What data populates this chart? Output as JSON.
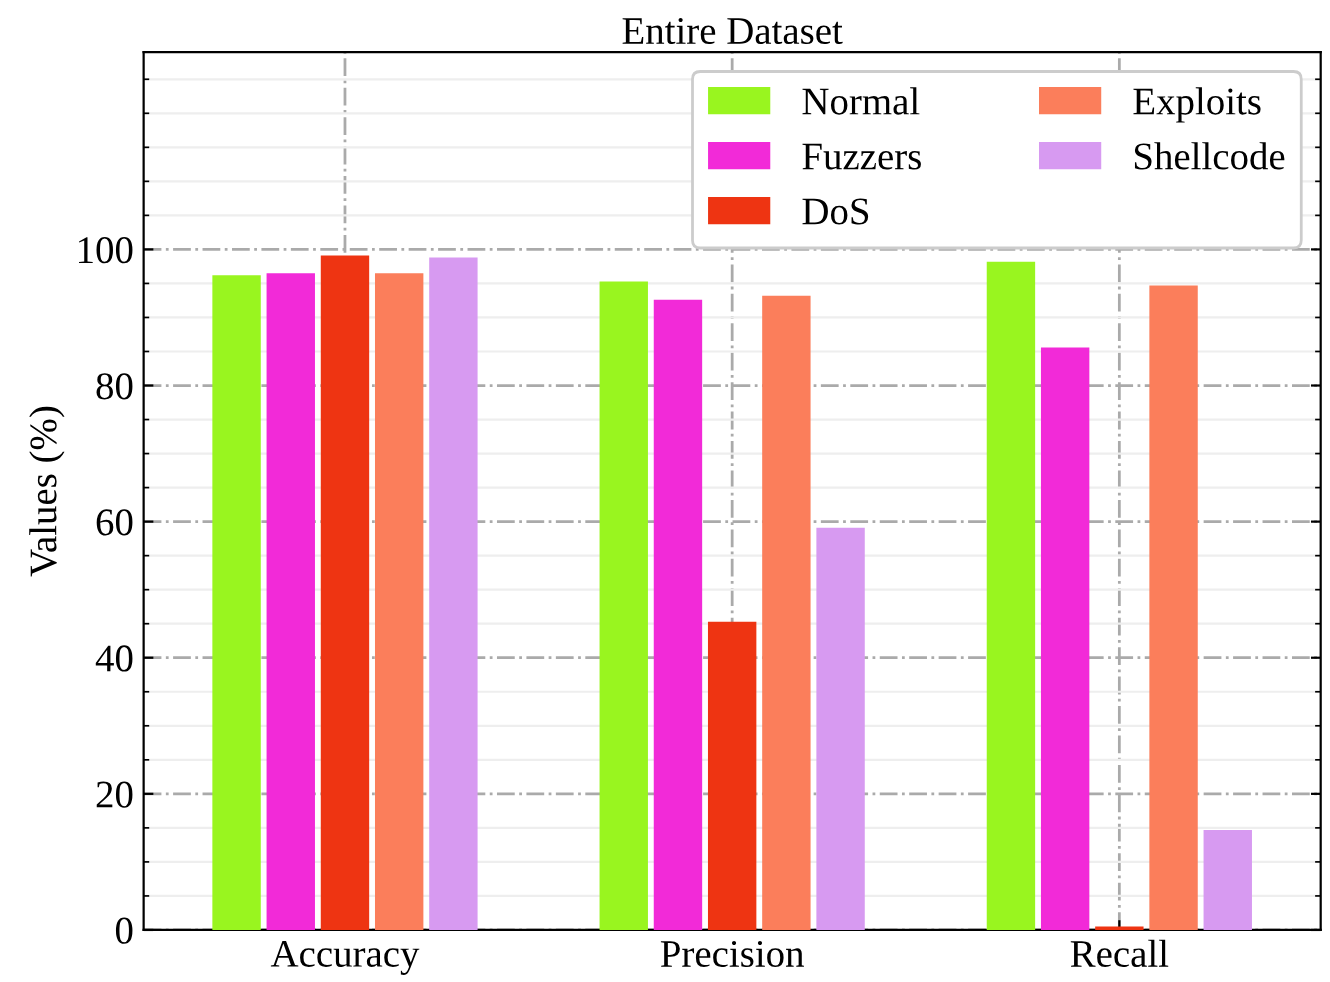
{
  "chart_data": {
    "type": "bar",
    "title": "Entire Dataset",
    "ylabel": "Values (%)",
    "categories": [
      "Accuracy",
      "Precision",
      "Recall"
    ],
    "series": [
      {
        "name": "Normal",
        "color": "#99f51f",
        "values": [
          96.2,
          95.3,
          98.2
        ]
      },
      {
        "name": "Fuzzers",
        "color": "#f22ad8",
        "values": [
          96.5,
          92.6,
          85.6
        ]
      },
      {
        "name": "DoS",
        "color": "#ee3412",
        "values": [
          99.1,
          45.3,
          0.5
        ]
      },
      {
        "name": "Exploits",
        "color": "#fb7e5b",
        "values": [
          96.5,
          93.2,
          94.7
        ]
      },
      {
        "name": "Shellcode",
        "color": "#d79af1",
        "values": [
          98.8,
          59.1,
          14.7
        ]
      }
    ],
    "ylim": [
      0,
      129
    ],
    "yticks": [
      0,
      20,
      40,
      60,
      80,
      100
    ],
    "grid": true,
    "legend": "top right"
  }
}
